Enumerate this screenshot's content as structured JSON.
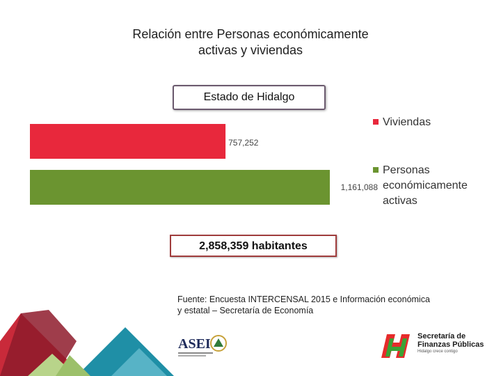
{
  "header": {
    "title_line1": "Relación entre Personas económicamente",
    "title_line2": "activas y viviendas"
  },
  "state_label": "Estado de Hidalgo",
  "chart_data": {
    "type": "bar",
    "orientation": "horizontal",
    "title": "",
    "xlabel": "",
    "ylabel": "",
    "xlim": [
      0,
      1161088
    ],
    "grid": false,
    "legend_position": "right",
    "series": [
      {
        "name": "Viviendas",
        "value": 757252,
        "value_label": "757,252",
        "color": "#e8283c"
      },
      {
        "name": "Personas económicamente activas",
        "value": 1161088,
        "value_label": "1,161,088",
        "color": "#6b9430"
      }
    ]
  },
  "legend": {
    "viviendas": "Viviendas",
    "personas_line1": "Personas",
    "personas_line2": "económicamente",
    "personas_line3": "activas"
  },
  "total_label": "2,858,359  habitantes",
  "source": {
    "line1": "Fuente: Encuesta INTERCENSAL 2015 e Información económica",
    "line2": "y estatal – Secretaría de Economía"
  },
  "logos": {
    "asei_text": "ASEI",
    "sfp_line1": "Secretaría de",
    "sfp_line2": "Finanzas Públicas",
    "sfp_line3": "Hidalgo crece contigo"
  },
  "colors": {
    "viviendas": "#e8283c",
    "personas": "#6b9430",
    "deco_dark_red": "#8e1b2c",
    "deco_red": "#c92a3a",
    "deco_teal": "#1f8fa6",
    "deco_green": "#9cc06a"
  }
}
